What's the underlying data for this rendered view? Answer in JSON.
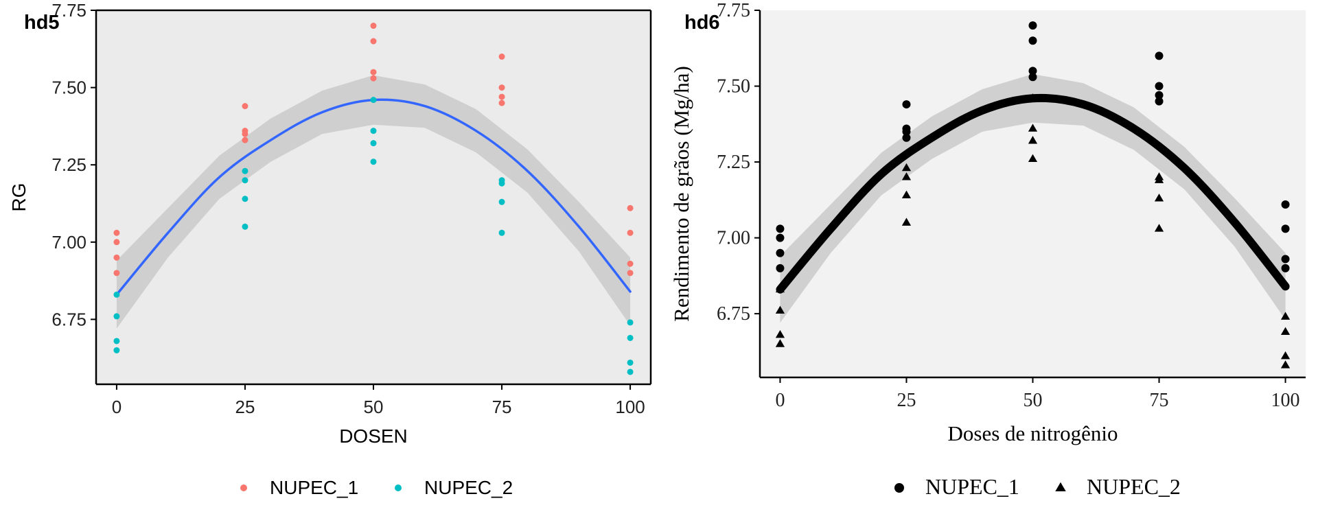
{
  "chart_data": [
    {
      "type": "scatter",
      "panel_tag": "hd5",
      "title": "",
      "xlabel": "DOSEN",
      "ylabel": "RG",
      "xlim": [
        -4,
        104
      ],
      "ylim": [
        6.54,
        7.75
      ],
      "x_ticks": [
        0,
        25,
        50,
        75,
        100
      ],
      "y_ticks": [
        6.75,
        7.0,
        7.25,
        7.5,
        7.75
      ],
      "y_tick_labels": [
        "6.75",
        "7.00",
        "7.25",
        "7.50",
        "7.75"
      ],
      "legend_position": "bottom",
      "colors": {
        "NUPEC_1": "#F8766D",
        "NUPEC_2": "#00BFC4",
        "fit": "#3366FF",
        "band": "#cccccc",
        "panel": "#ebebeb"
      },
      "series": [
        {
          "name": "NUPEC_1",
          "marker": "circle",
          "x": [
            0,
            0,
            0,
            0,
            25,
            25,
            25,
            25,
            50,
            50,
            50,
            50,
            75,
            75,
            75,
            75,
            100,
            100,
            100,
            100
          ],
          "y": [
            7.03,
            7.0,
            6.95,
            6.9,
            7.44,
            7.36,
            7.35,
            7.33,
            7.7,
            7.65,
            7.55,
            7.53,
            7.6,
            7.5,
            7.47,
            7.45,
            7.11,
            7.03,
            6.93,
            6.9
          ]
        },
        {
          "name": "NUPEC_2",
          "marker": "circle",
          "x": [
            0,
            0,
            0,
            0,
            25,
            25,
            25,
            25,
            50,
            50,
            50,
            50,
            75,
            75,
            75,
            75,
            100,
            100,
            100,
            100
          ],
          "y": [
            6.83,
            6.76,
            6.68,
            6.65,
            7.23,
            7.2,
            7.14,
            7.05,
            7.46,
            7.36,
            7.32,
            7.26,
            7.2,
            7.19,
            7.13,
            7.03,
            6.74,
            6.69,
            6.61,
            6.58
          ]
        }
      ],
      "fit": {
        "x": [
          0,
          10,
          20,
          30,
          40,
          50,
          60,
          70,
          80,
          90,
          100
        ],
        "y": [
          6.83,
          7.03,
          7.21,
          7.33,
          7.42,
          7.46,
          7.44,
          7.36,
          7.23,
          7.05,
          6.84
        ],
        "ci_halfwidth": [
          0.11,
          0.08,
          0.07,
          0.07,
          0.07,
          0.08,
          0.07,
          0.07,
          0.07,
          0.08,
          0.11
        ]
      }
    },
    {
      "type": "scatter",
      "panel_tag": "hd6",
      "title": "",
      "xlabel": "Doses de nitrogênio",
      "ylabel": "Rendimento de grãos (Mg/ha)",
      "xlim": [
        -4,
        104
      ],
      "ylim": [
        6.54,
        7.75
      ],
      "x_ticks": [
        0,
        25,
        50,
        75,
        100
      ],
      "y_ticks": [
        6.75,
        7.0,
        7.25,
        7.5,
        7.75
      ],
      "y_tick_labels": [
        "6.75",
        "7.00",
        "7.25",
        "7.50",
        "7.75"
      ],
      "legend_position": "bottom",
      "colors": {
        "points": "#000000",
        "fit": "#000000",
        "band": "#cccccc",
        "panel": "#f2f2f2"
      },
      "series": [
        {
          "name": "NUPEC_1",
          "marker": "circle",
          "x": [
            0,
            0,
            0,
            0,
            25,
            25,
            25,
            25,
            50,
            50,
            50,
            50,
            75,
            75,
            75,
            75,
            100,
            100,
            100,
            100
          ],
          "y": [
            7.03,
            7.0,
            6.95,
            6.9,
            7.44,
            7.36,
            7.35,
            7.33,
            7.7,
            7.65,
            7.55,
            7.53,
            7.6,
            7.5,
            7.47,
            7.45,
            7.11,
            7.03,
            6.93,
            6.9
          ]
        },
        {
          "name": "NUPEC_2",
          "marker": "triangle",
          "x": [
            0,
            0,
            0,
            0,
            25,
            25,
            25,
            25,
            50,
            50,
            50,
            50,
            75,
            75,
            75,
            75,
            100,
            100,
            100,
            100
          ],
          "y": [
            6.83,
            6.76,
            6.68,
            6.65,
            7.23,
            7.2,
            7.14,
            7.05,
            7.46,
            7.36,
            7.32,
            7.26,
            7.2,
            7.19,
            7.13,
            7.03,
            6.74,
            6.69,
            6.61,
            6.58
          ]
        }
      ],
      "fit": {
        "x": [
          0,
          10,
          20,
          30,
          40,
          50,
          60,
          70,
          80,
          90,
          100
        ],
        "y": [
          6.83,
          7.03,
          7.21,
          7.33,
          7.42,
          7.46,
          7.44,
          7.36,
          7.23,
          7.05,
          6.84
        ],
        "ci_halfwidth": [
          0.11,
          0.08,
          0.07,
          0.07,
          0.07,
          0.08,
          0.07,
          0.07,
          0.07,
          0.08,
          0.11
        ]
      }
    }
  ]
}
